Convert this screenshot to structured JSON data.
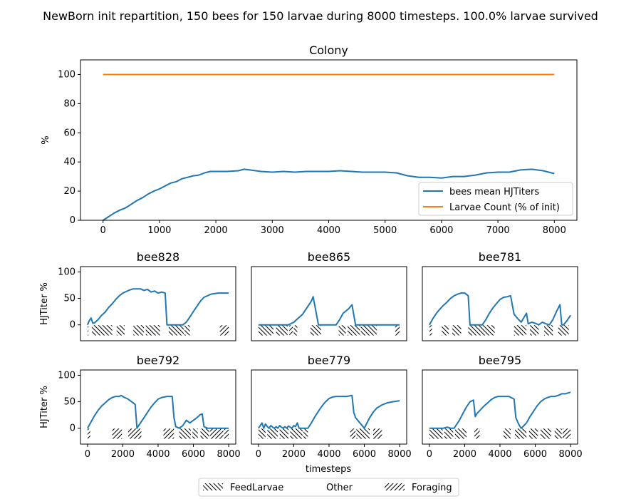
{
  "figure_title": "NewBorn init repartition, 150 bees for 150 larvae during 8000 timesteps. 100.0% larvae survived",
  "legend_bottom": {
    "entries": [
      {
        "label": "FeedLarvae",
        "pattern": "back-hatch"
      },
      {
        "label": "Other",
        "pattern": "none"
      },
      {
        "label": "Foraging",
        "pattern": "forward-hatch"
      }
    ]
  },
  "colors": {
    "series1": "#1f77b4",
    "series2": "#ff7f0e"
  },
  "chart_data": [
    {
      "type": "line",
      "id": "colony",
      "title": "Colony",
      "ylabel": "%",
      "xlabel": "",
      "xlim": [
        -400,
        8400
      ],
      "ylim": [
        0,
        110
      ],
      "xticks": [
        0,
        1000,
        2000,
        3000,
        4000,
        5000,
        6000,
        7000,
        8000
      ],
      "yticks": [
        0,
        20,
        40,
        60,
        80,
        100
      ],
      "legend": "bottom-right",
      "series": [
        {
          "name": "bees mean HJTiters",
          "color": "#1f77b4",
          "x": [
            0,
            100,
            200,
            300,
            400,
            500,
            600,
            700,
            800,
            900,
            1000,
            1100,
            1200,
            1300,
            1400,
            1500,
            1600,
            1700,
            1800,
            1900,
            2000,
            2200,
            2400,
            2500,
            2600,
            2800,
            3000,
            3200,
            3400,
            3600,
            3800,
            4000,
            4200,
            4400,
            4600,
            4800,
            5000,
            5200,
            5400,
            5600,
            5800,
            6000,
            6200,
            6400,
            6600,
            6800,
            7000,
            7200,
            7400,
            7600,
            7800,
            8000
          ],
          "y": [
            0,
            2.5,
            5,
            7,
            8.5,
            11,
            13.5,
            15.5,
            18,
            20,
            21.5,
            23.5,
            25.5,
            26.5,
            28.5,
            29.5,
            30.5,
            31,
            32.5,
            33.5,
            33.5,
            33.5,
            34,
            35,
            34.5,
            33.5,
            33,
            33.5,
            33,
            33.5,
            33.5,
            33.5,
            34,
            33.5,
            33,
            33,
            33,
            32.5,
            30.5,
            29.5,
            29.5,
            29,
            30,
            30,
            31,
            32.5,
            33,
            33,
            34.5,
            35,
            34,
            32
          ]
        },
        {
          "name": "Larvae Count (% of init)",
          "color": "#ff7f0e",
          "x": [
            0,
            8000
          ],
          "y": [
            100,
            100
          ]
        }
      ]
    },
    {
      "type": "line",
      "id": "bee828",
      "title": "bee828",
      "ylabel": "HJTiter %",
      "xlim": [
        -400,
        8400
      ],
      "ylim": [
        -30,
        110
      ],
      "yticks": [
        0,
        50,
        100
      ],
      "xticks": [],
      "series": [
        {
          "name": "",
          "color": "#1f77b4",
          "x": [
            0,
            100,
            200,
            300,
            400,
            600,
            800,
            1000,
            1200,
            1400,
            1600,
            1800,
            2000,
            2200,
            2400,
            2600,
            2800,
            3000,
            3200,
            3400,
            3600,
            3800,
            4000,
            4200,
            4400,
            4500,
            4800,
            5000,
            5200,
            5400,
            5600,
            5800,
            6000,
            6200,
            6400,
            6600,
            7000,
            7400,
            7800,
            8000
          ],
          "y": [
            0,
            8,
            13,
            3,
            4,
            10,
            18,
            24,
            33,
            40,
            48,
            55,
            60,
            63,
            66,
            68,
            68,
            68,
            65,
            67,
            62,
            64,
            60,
            62,
            60,
            0,
            0,
            0,
            0,
            0,
            5,
            15,
            25,
            35,
            45,
            52,
            58,
            60,
            60,
            60
          ]
        }
      ],
      "bands": [
        {
          "x0": 0,
          "x1": 50,
          "kind": "Foraging"
        },
        {
          "x0": 250,
          "x1": 1400,
          "kind": "FeedLarvae"
        },
        {
          "x0": 1650,
          "x1": 2100,
          "kind": "FeedLarvae"
        },
        {
          "x0": 2600,
          "x1": 3200,
          "kind": "FeedLarvae"
        },
        {
          "x0": 3300,
          "x1": 4100,
          "kind": "FeedLarvae"
        },
        {
          "x0": 4600,
          "x1": 5450,
          "kind": "FeedLarvae"
        },
        {
          "x0": 5500,
          "x1": 5800,
          "kind": "FeedLarvae"
        },
        {
          "x0": 7500,
          "x1": 8000,
          "kind": "Foraging"
        }
      ]
    },
    {
      "type": "line",
      "id": "bee865",
      "title": "bee865",
      "ylabel": "",
      "xlim": [
        -400,
        8400
      ],
      "ylim": [
        -30,
        110
      ],
      "yticks": [],
      "xticks": [],
      "series": [
        {
          "name": "",
          "color": "#1f77b4",
          "x": [
            0,
            500,
            1000,
            1500,
            1700,
            2000,
            2500,
            2800,
            3000,
            3100,
            3400,
            3800,
            4000,
            4400,
            4600,
            4800,
            5100,
            5300,
            5500,
            6000,
            6500,
            7000,
            7500,
            8000
          ],
          "y": [
            0,
            0,
            0,
            0,
            0,
            5,
            20,
            35,
            45,
            53,
            0,
            0,
            0,
            0,
            10,
            22,
            30,
            38,
            0,
            0,
            0,
            0,
            0,
            0
          ]
        }
      ],
      "bands": [
        {
          "x0": 0,
          "x1": 850,
          "kind": "FeedLarvae"
        },
        {
          "x0": 1000,
          "x1": 1650,
          "kind": "FeedLarvae"
        },
        {
          "x0": 1750,
          "x1": 1950,
          "kind": "Foraging"
        },
        {
          "x0": 2000,
          "x1": 2200,
          "kind": "FeedLarvae"
        },
        {
          "x0": 2950,
          "x1": 3550,
          "kind": "FeedLarvae"
        },
        {
          "x0": 4550,
          "x1": 4950,
          "kind": "FeedLarvae"
        },
        {
          "x0": 5050,
          "x1": 5750,
          "kind": "FeedLarvae"
        },
        {
          "x0": 5800,
          "x1": 6700,
          "kind": "FeedLarvae"
        },
        {
          "x0": 7750,
          "x1": 8000,
          "kind": "Foraging"
        }
      ]
    },
    {
      "type": "line",
      "id": "bee781",
      "title": "bee781",
      "ylabel": "",
      "xlim": [
        -400,
        8400
      ],
      "ylim": [
        -30,
        110
      ],
      "yticks": [],
      "xticks": [],
      "series": [
        {
          "name": "",
          "color": "#1f77b4",
          "x": [
            0,
            200,
            400,
            600,
            800,
            1000,
            1200,
            1400,
            1600,
            1800,
            2000,
            2200,
            2300,
            2600,
            2800,
            3000,
            3200,
            3400,
            3600,
            3800,
            4000,
            4200,
            4400,
            4600,
            4800,
            5000,
            5200,
            5500,
            5600,
            5800,
            6000,
            6200,
            6400,
            6600,
            6800,
            7000,
            7200,
            7400,
            7500,
            7600,
            7800,
            8000
          ],
          "y": [
            0,
            12,
            22,
            30,
            37,
            43,
            50,
            55,
            58,
            60,
            60,
            55,
            0,
            0,
            0,
            0,
            10,
            22,
            32,
            40,
            48,
            52,
            53,
            55,
            20,
            12,
            5,
            22,
            2,
            5,
            3,
            0,
            5,
            2,
            0,
            10,
            25,
            38,
            0,
            0,
            8,
            18
          ]
        }
      ],
      "bands": [
        {
          "x0": 0,
          "x1": 150,
          "kind": "Foraging"
        },
        {
          "x0": 700,
          "x1": 1100,
          "kind": "FeedLarvae"
        },
        {
          "x0": 1300,
          "x1": 1800,
          "kind": "FeedLarvae"
        },
        {
          "x0": 2200,
          "x1": 3700,
          "kind": "FeedLarvae"
        },
        {
          "x0": 4800,
          "x1": 5500,
          "kind": "FeedLarvae"
        },
        {
          "x0": 5700,
          "x1": 6200,
          "kind": "FeedLarvae"
        },
        {
          "x0": 6500,
          "x1": 7000,
          "kind": "FeedLarvae"
        },
        {
          "x0": 7300,
          "x1": 7900,
          "kind": "FeedLarvae"
        }
      ]
    },
    {
      "type": "line",
      "id": "bee792",
      "title": "bee792",
      "ylabel": "HJTiter %",
      "xlim": [
        -400,
        8400
      ],
      "ylim": [
        -30,
        110
      ],
      "yticks": [
        0,
        50,
        100
      ],
      "xticks": [
        0,
        2000,
        4000,
        6000,
        8000
      ],
      "series": [
        {
          "name": "",
          "color": "#1f77b4",
          "x": [
            0,
            200,
            400,
            600,
            800,
            1000,
            1200,
            1400,
            1600,
            1800,
            1900,
            2100,
            2300,
            2500,
            2700,
            2800,
            3000,
            3200,
            3400,
            3600,
            3800,
            4000,
            4200,
            4500,
            4800,
            4900,
            5000,
            5200,
            5400,
            5600,
            5800,
            6000,
            6200,
            6400,
            6500,
            6600,
            6800,
            7000,
            7200,
            7400,
            7600,
            7800,
            8000
          ],
          "y": [
            0,
            12,
            24,
            34,
            42,
            48,
            54,
            58,
            60,
            60,
            62,
            58,
            55,
            50,
            45,
            0,
            10,
            20,
            30,
            40,
            48,
            55,
            58,
            60,
            60,
            20,
            3,
            0,
            5,
            15,
            10,
            15,
            20,
            26,
            27,
            3,
            0,
            0,
            0,
            0,
            0,
            0,
            0
          ]
        }
      ],
      "bands": [
        {
          "x0": 0,
          "x1": 150,
          "kind": "Foraging"
        },
        {
          "x0": 1400,
          "x1": 1950,
          "kind": "Foraging"
        },
        {
          "x0": 2300,
          "x1": 3050,
          "kind": "Foraging"
        },
        {
          "x0": 4300,
          "x1": 4900,
          "kind": "Foraging"
        },
        {
          "x0": 5200,
          "x1": 5850,
          "kind": "FeedLarvae"
        },
        {
          "x0": 5950,
          "x1": 6250,
          "kind": "FeedLarvae"
        },
        {
          "x0": 6400,
          "x1": 6900,
          "kind": "FeedLarvae"
        },
        {
          "x0": 6950,
          "x1": 7700,
          "kind": "Foraging"
        },
        {
          "x0": 7750,
          "x1": 8000,
          "kind": "Foraging"
        }
      ]
    },
    {
      "type": "line",
      "id": "bee779",
      "title": "bee779",
      "ylabel": "",
      "xlim": [
        -400,
        8400
      ],
      "ylim": [
        -30,
        110
      ],
      "yticks": [],
      "xticks": [
        0,
        2000,
        4000,
        6000,
        8000
      ],
      "series": [
        {
          "name": "",
          "color": "#1f77b4",
          "x": [
            0,
            100,
            200,
            300,
            400,
            500,
            600,
            700,
            800,
            900,
            1000,
            1100,
            1200,
            1300,
            1400,
            1500,
            1600,
            1700,
            1800,
            1900,
            2000,
            2100,
            2200,
            2300,
            2500,
            2800,
            3000,
            3200,
            3400,
            3600,
            3800,
            4000,
            4200,
            4400,
            4600,
            5000,
            5300,
            5400,
            5500,
            5700,
            6000,
            6300,
            6500,
            6700,
            7000,
            7300,
            7600,
            8000
          ],
          "y": [
            0,
            5,
            10,
            0,
            8,
            3,
            0,
            5,
            2,
            0,
            3,
            0,
            5,
            2,
            0,
            3,
            0,
            4,
            2,
            0,
            5,
            3,
            10,
            0,
            0,
            0,
            10,
            22,
            32,
            42,
            50,
            56,
            59,
            60,
            60,
            60,
            62,
            30,
            20,
            12,
            0,
            20,
            30,
            38,
            44,
            48,
            50,
            52
          ]
        }
      ],
      "bands": [
        {
          "x0": 0,
          "x1": 400,
          "kind": "FeedLarvae"
        },
        {
          "x0": 500,
          "x1": 1100,
          "kind": "FeedLarvae"
        },
        {
          "x0": 1200,
          "x1": 1700,
          "kind": "FeedLarvae"
        },
        {
          "x0": 1800,
          "x1": 2500,
          "kind": "FeedLarvae"
        },
        {
          "x0": 2550,
          "x1": 2800,
          "kind": "FeedLarvae"
        },
        {
          "x0": 5200,
          "x1": 5500,
          "kind": "Foraging"
        },
        {
          "x0": 5550,
          "x1": 6300,
          "kind": "FeedLarvae"
        },
        {
          "x0": 6500,
          "x1": 7000,
          "kind": "Foraging"
        }
      ]
    },
    {
      "type": "line",
      "id": "bee795",
      "title": "bee795",
      "ylabel": "",
      "xlim": [
        -400,
        8400
      ],
      "ylim": [
        -30,
        110
      ],
      "yticks": [],
      "xticks": [
        0,
        2000,
        4000,
        6000,
        8000
      ],
      "series": [
        {
          "name": "",
          "color": "#1f77b4",
          "x": [
            0,
            200,
            400,
            600,
            800,
            1000,
            1200,
            1400,
            1500,
            1700,
            1900,
            2100,
            2300,
            2500,
            2600,
            2700,
            2900,
            3100,
            3300,
            3500,
            3700,
            3900,
            4100,
            4300,
            4500,
            4800,
            4900,
            5000,
            5100,
            5200,
            5300,
            5500,
            5700,
            5900,
            6100,
            6300,
            6500,
            6700,
            6900,
            7100,
            7300,
            7500,
            7700,
            8000
          ],
          "y": [
            0,
            0,
            0,
            0,
            0,
            2,
            0,
            0,
            5,
            15,
            28,
            40,
            50,
            53,
            22,
            28,
            35,
            42,
            48,
            54,
            58,
            60,
            60,
            60,
            60,
            55,
            20,
            12,
            5,
            0,
            3,
            10,
            22,
            32,
            42,
            50,
            55,
            58,
            60,
            60,
            62,
            65,
            65,
            68
          ]
        }
      ],
      "bands": [
        {
          "x0": 0,
          "x1": 750,
          "kind": "FeedLarvae"
        },
        {
          "x0": 850,
          "x1": 1350,
          "kind": "FeedLarvae"
        },
        {
          "x0": 1450,
          "x1": 2100,
          "kind": "FeedLarvae"
        },
        {
          "x0": 2550,
          "x1": 2850,
          "kind": "Foraging"
        },
        {
          "x0": 4200,
          "x1": 4600,
          "kind": "FeedLarvae"
        },
        {
          "x0": 4850,
          "x1": 5500,
          "kind": "FeedLarvae"
        },
        {
          "x0": 5650,
          "x1": 6150,
          "kind": "FeedLarvae"
        },
        {
          "x0": 6300,
          "x1": 6900,
          "kind": "FeedLarvae"
        },
        {
          "x0": 7100,
          "x1": 7500,
          "kind": "FeedLarvae"
        },
        {
          "x0": 7550,
          "x1": 8000,
          "kind": "Foraging"
        }
      ]
    }
  ],
  "subplot_xlabel": "timesteps"
}
